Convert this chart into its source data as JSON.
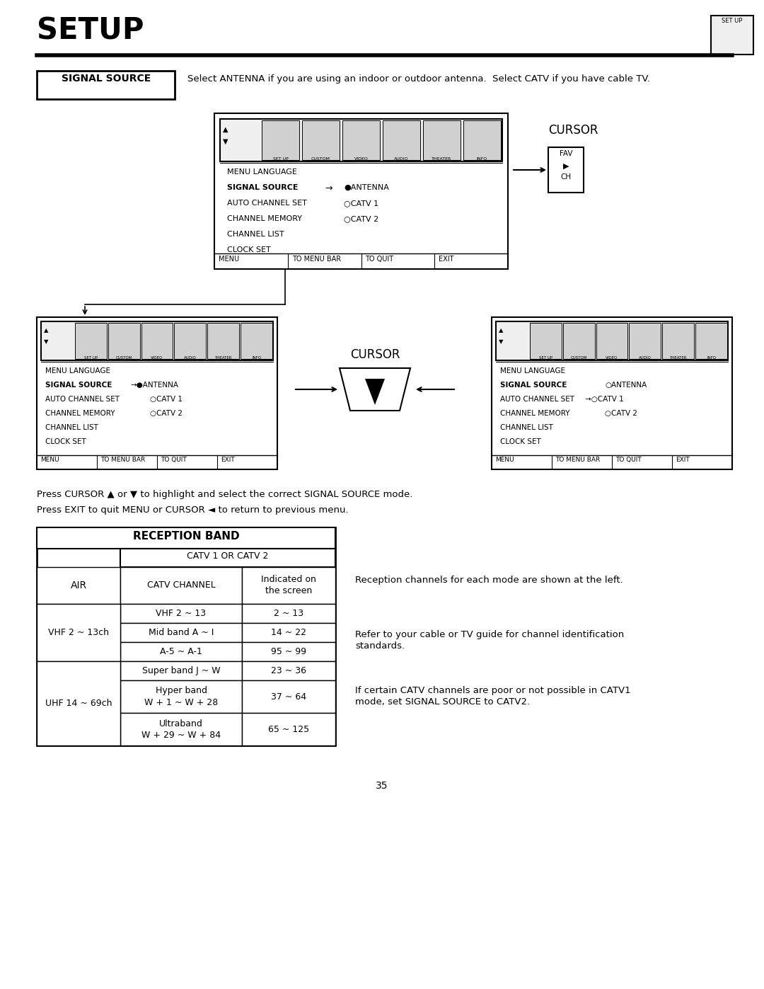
{
  "title": "SETUP",
  "page_number": "35",
  "signal_source_label": "SIGNAL SOURCE",
  "signal_source_desc": "Select ANTENNA if you are using an indoor or outdoor antenna.  Select CATV if you have cable TV.",
  "menu_items": [
    "MENU LANGUAGE",
    "SIGNAL SOURCE",
    "AUTO CHANNEL SET",
    "CHANNEL MEMORY",
    "CHANNEL LIST",
    "CLOCK SET"
  ],
  "menu_bottom": [
    "MENU",
    "TO MENU BAR",
    "TO QUIT",
    "EXIT"
  ],
  "cursor_label": "CURSOR",
  "press_text1": "Press CURSOR ▲ or ▼ to highlight and select the correct SIGNAL SOURCE mode.",
  "press_text2": "Press EXIT to quit MENU or CURSOR ◄ to return to previous menu.",
  "reception_band_title": "RECEPTION BAND",
  "catv_header": "CATV 1 OR CATV 2",
  "air_label": "AIR",
  "catv_channel_header": "CATV CHANNEL",
  "indicated_header": "Indicated on\nthe screen",
  "table_rows": [
    [
      "VHF 2 ~ 13",
      "2 ~ 13"
    ],
    [
      "Mid band A ~ I",
      "14 ~ 22"
    ],
    [
      "A-5 ~ A-1",
      "95 ~ 99"
    ],
    [
      "Super band J ~ W",
      "23 ~ 36"
    ],
    [
      "Hyper band\nW + 1 ~ W + 28",
      "37 ~ 64"
    ],
    [
      "Ultraband\nW + 29 ~ W + 84",
      "65 ~ 125"
    ]
  ],
  "air_labels": [
    "VHF 2 ~ 13ch",
    "UHF 14 ~ 69ch"
  ],
  "note1": "Reception channels for each mode are shown at the left.",
  "note2": "Refer to your cable or TV guide for channel identification\nstandards.",
  "note3": "If certain CATV channels are poor or not possible in CATV1\nmode, set SIGNAL SOURCE to CATV2.",
  "bg_color": "#ffffff",
  "text_color": "#000000"
}
